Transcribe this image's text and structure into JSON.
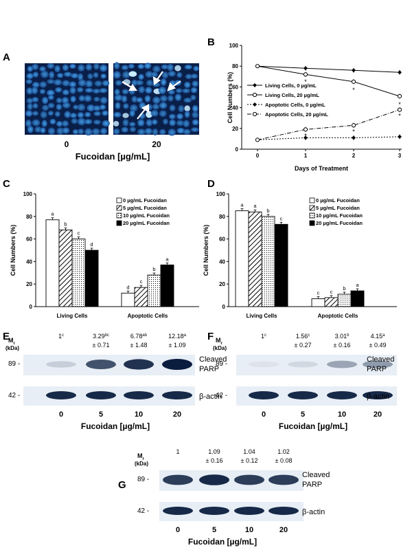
{
  "panel_letters": {
    "A": "A",
    "B": "B",
    "C": "C",
    "D": "D",
    "E": "E",
    "F": "F",
    "G": "G"
  },
  "panel_a": {
    "dose_labels": [
      "0",
      "20"
    ],
    "axis_label": "Fucoidan [µg/mL]"
  },
  "charts": {
    "B": {
      "type": "line",
      "ylabel": "Cell Numbers (%)",
      "xlabel": "Days of Treatment",
      "ylim": [
        0,
        100
      ],
      "yticks": [
        "0",
        "20",
        "40",
        "60",
        "80",
        "100"
      ],
      "x": [
        0,
        1,
        2,
        3
      ],
      "xticks": [
        "0",
        "1",
        "2",
        "3"
      ],
      "series": [
        {
          "name": "Living Cells, 0 µg/mL",
          "values": [
            80,
            78,
            76,
            74
          ],
          "marker": "filled-diamond",
          "dash": "solid"
        },
        {
          "name": "Living Cells, 20 µg/mL",
          "values": [
            80,
            72,
            65,
            51
          ],
          "marker": "open-circle",
          "dash": "solid"
        },
        {
          "name": "Apoptotic Cells, 0 µg/mL",
          "values": [
            9,
            11,
            11,
            12
          ],
          "marker": "filled-diamond",
          "dash": "dotted"
        },
        {
          "name": "Apoptotic Cells, 20 µg/mL",
          "values": [
            9,
            19,
            23,
            38
          ],
          "marker": "open-circle",
          "dash": "dashdot"
        }
      ],
      "annotations": [
        "*",
        "*",
        "*",
        "*",
        "*",
        "*"
      ]
    },
    "C": {
      "type": "bar",
      "ylabel": "Cell Numbers (%)",
      "ylim": [
        0,
        100
      ],
      "yticks": [
        "0",
        "20",
        "40",
        "60",
        "80",
        "100"
      ],
      "categories": [
        "Living Cells",
        "Apoptotic Cells"
      ],
      "series": [
        {
          "name": "0 µg/mL Fucoidan",
          "values": [
            77,
            12
          ],
          "labels": [
            "a",
            "d"
          ]
        },
        {
          "name": "5 µg/mL Fucoidan",
          "values": [
            68,
            17
          ],
          "labels": [
            "b",
            "c"
          ]
        },
        {
          "name": "10 µg/mL Fucoidan",
          "values": [
            60,
            28
          ],
          "labels": [
            "c",
            "b"
          ]
        },
        {
          "name": "20 µg/mL Fucoidan",
          "values": [
            50,
            37
          ],
          "labels": [
            "d",
            "a"
          ]
        }
      ]
    },
    "D": {
      "type": "bar",
      "ylabel": "Cell Numbers (%)",
      "ylim": [
        0,
        100
      ],
      "yticks": [
        "0",
        "20",
        "40",
        "60",
        "80",
        "100"
      ],
      "categories": [
        "Living Cells",
        "Apoptotic Cells"
      ],
      "series": [
        {
          "name": "0 µg/mL Fucoidan",
          "values": [
            85,
            7
          ],
          "labels": [
            "a",
            "c"
          ]
        },
        {
          "name": "5 µg/mL Fucoidan",
          "values": [
            84,
            8
          ],
          "labels": [
            "a",
            "c"
          ]
        },
        {
          "name": "10 µg/mL Fucoidan",
          "values": [
            80,
            11
          ],
          "labels": [
            "b",
            "b"
          ]
        },
        {
          "name": "20 µg/mL Fucoidan",
          "values": [
            73,
            14
          ],
          "labels": [
            "c",
            "a"
          ]
        }
      ]
    }
  },
  "blots": {
    "E": {
      "mr": "M",
      "mr_sub": "r",
      "kda": "(kDa)",
      "markers": [
        "89 -",
        "42 -"
      ],
      "bands": [
        "Cleaved",
        "PARP",
        "β-actin"
      ],
      "doses": [
        "0",
        "5",
        "10",
        "20"
      ],
      "xlabel": "Fucoidan  [µg/mL]",
      "quant": [
        {
          "top": "1",
          "sup": "c",
          "bot": ""
        },
        {
          "top": "3.29",
          "sup": "bc",
          "bot": "± 0.71"
        },
        {
          "top": "6.78",
          "sup": "ab",
          "bot": "± 1.48"
        },
        {
          "top": "12.18",
          "sup": "a",
          "bot": "± 1.09"
        }
      ],
      "intensity": [
        0.15,
        0.75,
        0.9,
        1.0
      ]
    },
    "F": {
      "mr": "M",
      "mr_sub": "r",
      "kda": "(kDa)",
      "markers": [
        "89 -",
        "42 -"
      ],
      "bands": [
        "Cleaved",
        "PARP",
        "β-actin"
      ],
      "doses": [
        "0",
        "5",
        "10",
        "20"
      ],
      "xlabel": "Fucoidan  [µg/mL]",
      "quant": [
        {
          "top": "1",
          "sup": "c",
          "bot": ""
        },
        {
          "top": "1.56",
          "sup": "c",
          "bot": "± 0.27"
        },
        {
          "top": "3.01",
          "sup": "b",
          "bot": "± 0.16"
        },
        {
          "top": "4.15",
          "sup": "a",
          "bot": "± 0.49"
        }
      ],
      "intensity": [
        0.05,
        0.1,
        0.35,
        0.4
      ]
    },
    "G": {
      "mr": "M",
      "mr_sub": "r",
      "kda": "(kDa)",
      "markers": [
        "89 -",
        "42 -"
      ],
      "bands": [
        "Cleaved",
        "PARP",
        "β-actin"
      ],
      "doses": [
        "0",
        "5",
        "10",
        "20"
      ],
      "xlabel": "Fucoidan  [µg/mL]",
      "quant": [
        {
          "top": "1",
          "sup": "",
          "bot": ""
        },
        {
          "top": "1.09",
          "sup": "",
          "bot": "± 0.16"
        },
        {
          "top": "1.04",
          "sup": "",
          "bot": "± 0.12"
        },
        {
          "top": "1.02",
          "sup": "",
          "bot": "± 0.08"
        }
      ],
      "intensity": [
        0.85,
        0.95,
        0.85,
        0.85
      ]
    }
  }
}
